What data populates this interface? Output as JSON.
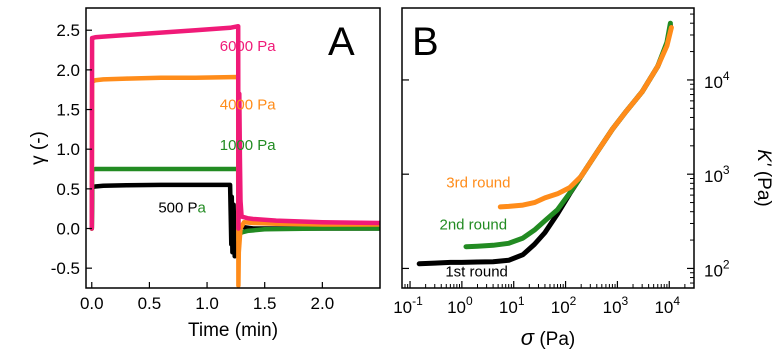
{
  "chart_data": [
    {
      "type": "line",
      "panel_label": "A",
      "xlabel": "Time (min)",
      "ylabel": "γ (-)",
      "xlim": [
        -0.05,
        2.5
      ],
      "ylim": [
        -0.75,
        2.78
      ],
      "xticks": [
        {
          "v": 0.0,
          "t": "0.0"
        },
        {
          "v": 0.5,
          "t": "0.5"
        },
        {
          "v": 1.0,
          "t": "1.0"
        },
        {
          "v": 1.5,
          "t": "1.5"
        },
        {
          "v": 2.0,
          "t": "2.0"
        }
      ],
      "yticks": [
        {
          "v": -0.5,
          "t": "-0.5"
        },
        {
          "v": 0.0,
          "t": "0.0"
        },
        {
          "v": 0.5,
          "t": "0.5"
        },
        {
          "v": 1.0,
          "t": "1.0"
        },
        {
          "v": 1.5,
          "t": "1.5"
        },
        {
          "v": 2.0,
          "t": "2.0"
        },
        {
          "v": 2.5,
          "t": "2.5"
        }
      ],
      "grid": false,
      "legend": "none",
      "series": [
        {
          "color": "#000000",
          "x": [
            0.0,
            0.005,
            0.03,
            0.1,
            0.3,
            0.6,
            0.9,
            1.2,
            1.21,
            1.215,
            1.22,
            1.23,
            1.24,
            1.25,
            1.27,
            1.3,
            1.4,
            1.6,
            2.0,
            2.5
          ],
          "y": [
            0.0,
            0.52,
            0.53,
            0.54,
            0.545,
            0.55,
            0.55,
            0.55,
            -0.2,
            0.4,
            -0.3,
            0.3,
            -0.35,
            0.15,
            0.05,
            0.02,
            0.0,
            0.0,
            0.0,
            0.0
          ]
        },
        {
          "color": "#228b22",
          "x": [
            0.0,
            0.004,
            0.03,
            0.1,
            0.3,
            0.6,
            0.9,
            1.27,
            1.272,
            1.275,
            1.3,
            1.35,
            1.5,
            2.0,
            2.5
          ],
          "y": [
            0.0,
            0.74,
            0.75,
            0.75,
            0.75,
            0.75,
            0.75,
            0.75,
            -0.15,
            -0.08,
            -0.05,
            -0.03,
            -0.01,
            0.0,
            0.0
          ]
        },
        {
          "color": "#ff8c1a",
          "x": [
            0.0,
            0.003,
            0.03,
            0.1,
            0.3,
            0.6,
            0.9,
            1.27,
            1.272,
            1.275,
            1.29,
            1.32,
            1.4,
            1.6,
            2.0,
            2.5
          ],
          "y": [
            0.0,
            1.85,
            1.87,
            1.88,
            1.89,
            1.9,
            1.9,
            1.91,
            -0.72,
            -0.3,
            0.0,
            0.08,
            0.07,
            0.06,
            0.05,
            0.05
          ]
        },
        {
          "color": "#f01a78",
          "x": [
            0.0,
            0.003,
            0.03,
            0.1,
            0.3,
            0.6,
            0.9,
            1.2,
            1.27,
            1.272,
            1.28,
            1.285,
            1.29,
            1.3,
            1.35,
            1.4,
            1.6,
            2.0,
            2.5
          ],
          "y": [
            0.0,
            2.4,
            2.41,
            2.42,
            2.44,
            2.47,
            2.5,
            2.53,
            2.55,
            0.0,
            1.7,
            0.9,
            0.35,
            0.15,
            0.13,
            0.12,
            0.1,
            0.08,
            0.07
          ]
        }
      ],
      "annotations": [
        {
          "text": "6000 Pa",
          "x": 1.11,
          "y": 2.24,
          "color": "#f01a78"
        },
        {
          "text": "4000 Pa",
          "x": 1.11,
          "y": 1.5,
          "color": "#ff8c1a"
        },
        {
          "text": "1000 Pa",
          "x": 1.11,
          "y": 0.99,
          "color": "#228b22"
        }
      ],
      "annotation_500": {
        "part1": "500 P",
        "part2": "a",
        "x": 0.99,
        "y": 0.2,
        "color1": "#000000",
        "color2": "#228b22"
      }
    },
    {
      "type": "line",
      "panel_label": "B",
      "xlabel_symbol": "σ",
      "xlabel_unit": "(Pa)",
      "ylabel_symbol": "K'",
      "ylabel_unit": "(Pa)",
      "xscale": "log",
      "yscale": "log",
      "xlim": [
        0.07,
        30000
      ],
      "ylim": [
        62,
        58000
      ],
      "xticks": [
        {
          "e": -1,
          "v": 0.1
        },
        {
          "e": 0,
          "v": 1
        },
        {
          "e": 1,
          "v": 10
        },
        {
          "e": 2,
          "v": 100
        },
        {
          "e": 3,
          "v": 1000
        },
        {
          "e": 4,
          "v": 10000
        }
      ],
      "yticks": [
        {
          "e": 2,
          "v": 100
        },
        {
          "e": 3,
          "v": 1000
        },
        {
          "e": 4,
          "v": 10000
        }
      ],
      "grid": false,
      "legend": "none",
      "series": [
        {
          "color": "#000000",
          "x": [
            0.15,
            0.3,
            0.6,
            1,
            2,
            4,
            8,
            15,
            25,
            40,
            70,
            120,
            200,
            400,
            800,
            1500,
            3000,
            6000,
            9000,
            10500
          ],
          "y": [
            112,
            114,
            116,
            116,
            117,
            118,
            122,
            140,
            180,
            240,
            380,
            620,
            950,
            1700,
            3000,
            4700,
            7500,
            14000,
            24000,
            38000
          ]
        },
        {
          "color": "#228b22",
          "x": [
            1.2,
            2,
            4,
            8,
            15,
            25,
            40,
            70,
            120,
            200,
            400,
            800,
            1500,
            3000,
            6000,
            9000,
            10500
          ],
          "y": [
            170,
            172,
            176,
            185,
            210,
            255,
            320,
            420,
            630,
            950,
            1700,
            3000,
            4700,
            7500,
            14000,
            25000,
            40000
          ]
        },
        {
          "color": "#ff8c1a",
          "x": [
            5.5,
            8,
            15,
            25,
            40,
            70,
            120,
            200,
            400,
            800,
            1500,
            3000,
            6000,
            9000,
            11000
          ],
          "y": [
            450,
            455,
            470,
            500,
            560,
            620,
            720,
            950,
            1700,
            3000,
            4700,
            7500,
            14000,
            23000,
            36000
          ]
        }
      ],
      "annotations": [
        {
          "text": "3rd round",
          "x": 0.5,
          "y": 720,
          "color": "#ff8c1a"
        },
        {
          "text": "2nd round",
          "x": 0.37,
          "y": 260,
          "color": "#228b22"
        },
        {
          "text": "1st round",
          "x": 0.48,
          "y": 82,
          "color": "#000000"
        }
      ]
    }
  ]
}
